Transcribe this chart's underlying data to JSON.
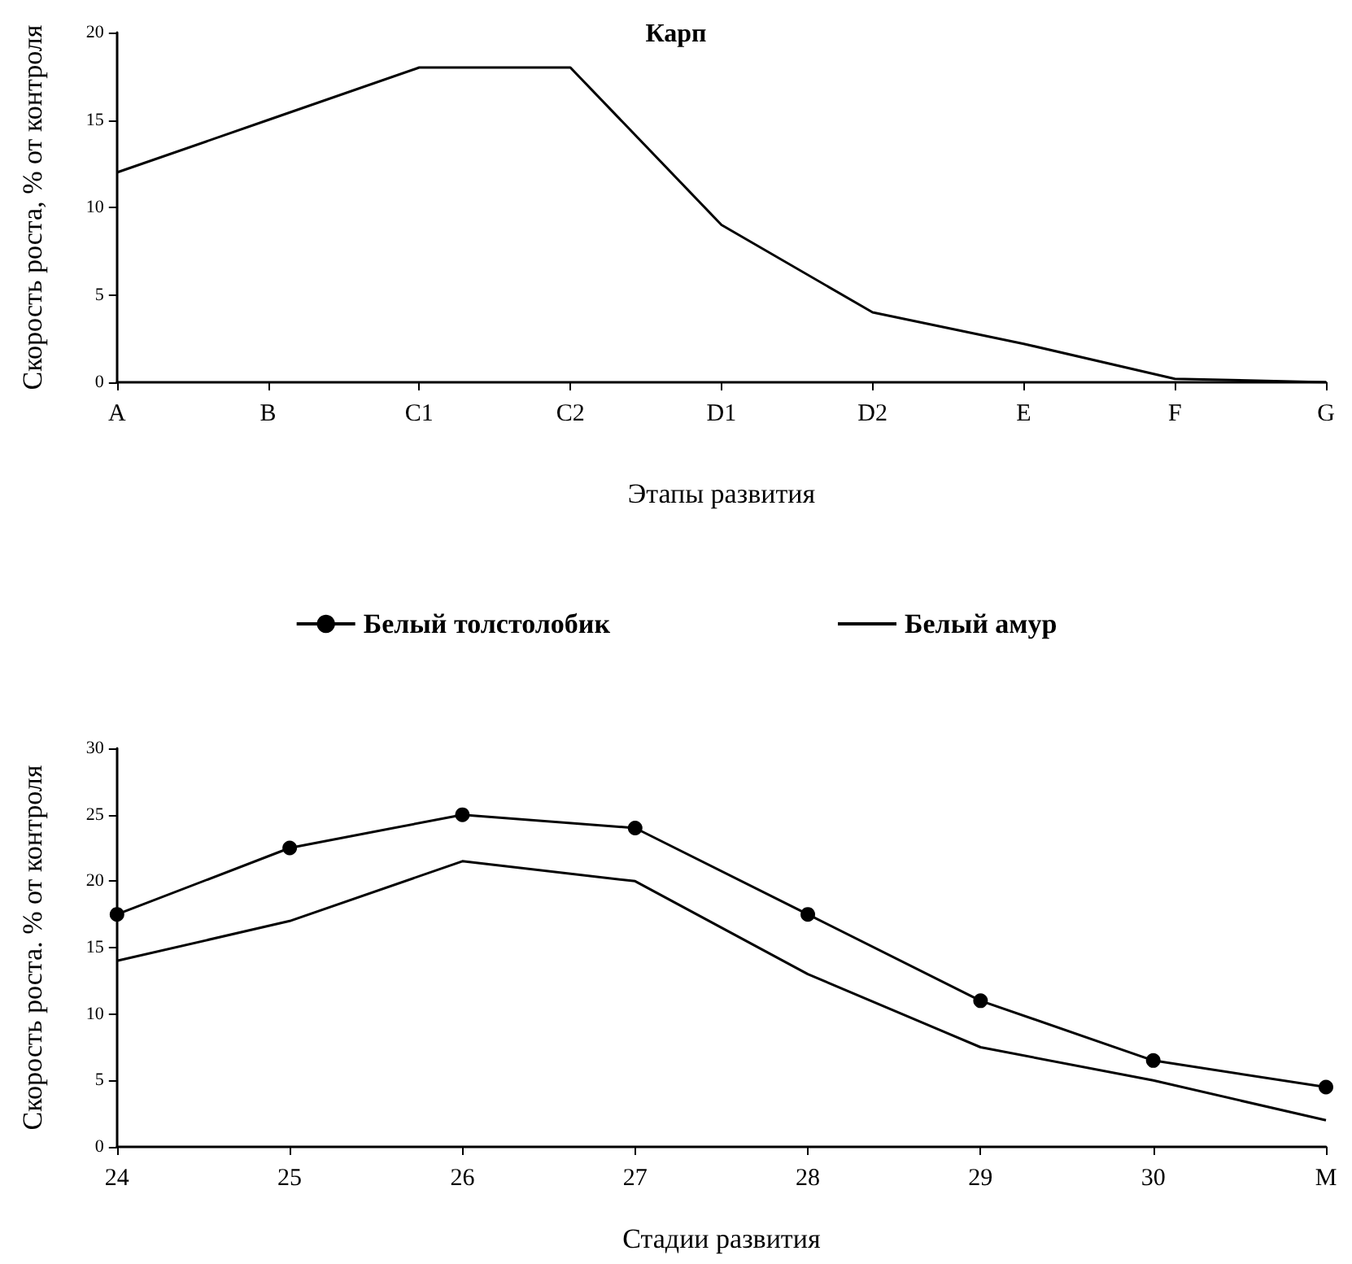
{
  "chart_data": [
    {
      "type": "line",
      "title": "Карп",
      "xlabel": "Этапы развития",
      "ylabel": "Скорость роста, % от контроля",
      "categories": [
        "A",
        "B",
        "C1",
        "C2",
        "D1",
        "D2",
        "E",
        "F",
        "G"
      ],
      "series": [
        {
          "color": "#000000",
          "values": [
            12,
            15,
            18,
            18,
            9,
            4,
            2.2,
            0.2,
            0
          ]
        }
      ],
      "ylim": [
        0,
        20
      ],
      "yticks": [
        0,
        5,
        10,
        15,
        20
      ],
      "grid": false,
      "legend": false
    },
    {
      "type": "line",
      "xlabel": "Стадии развития",
      "ylabel": "Скорость роста. % от контроля",
      "categories": [
        "24",
        "25",
        "26",
        "27",
        "28",
        "29",
        "30",
        "M"
      ],
      "series": [
        {
          "name": "Белый толстолобик",
          "color": "#000000",
          "marker": "circle",
          "values": [
            17.5,
            22.5,
            25,
            24,
            17.5,
            11,
            6.5,
            4.5
          ]
        },
        {
          "name": "Белый амур",
          "color": "#000000",
          "marker": "none",
          "values": [
            14,
            17,
            21.5,
            20,
            13,
            7.5,
            5,
            2
          ]
        }
      ],
      "ylim": [
        0,
        30
      ],
      "yticks": [
        0,
        5,
        10,
        15,
        20,
        25,
        30
      ],
      "grid": false,
      "legend": "top"
    }
  ]
}
